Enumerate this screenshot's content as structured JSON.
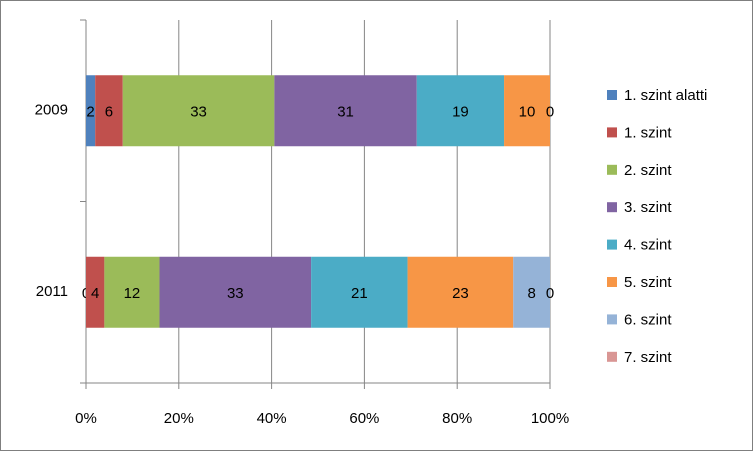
{
  "chart_data": {
    "type": "stacked-bar-100-horizontal",
    "categories": [
      "2009",
      "2011"
    ],
    "series": [
      {
        "name": "1. szint alatti",
        "color": "#4F81BD",
        "values": [
          2,
          0
        ]
      },
      {
        "name": "1. szint",
        "color": "#C0504D",
        "values": [
          6,
          4
        ]
      },
      {
        "name": "2. szint",
        "color": "#9BBB59",
        "values": [
          33,
          12
        ]
      },
      {
        "name": "3. szint",
        "color": "#8064A2",
        "values": [
          31,
          33
        ]
      },
      {
        "name": "4. szint",
        "color": "#4BACC6",
        "values": [
          19,
          21
        ]
      },
      {
        "name": "5. szint",
        "color": "#F79646",
        "values": [
          10,
          23
        ]
      },
      {
        "name": "6. szint",
        "color": "#95B3D7",
        "values": [
          0,
          8
        ]
      },
      {
        "name": "7. szint",
        "color": "#D99694",
        "values": [
          0,
          0
        ]
      }
    ],
    "xlim": [
      0,
      100
    ],
    "xticks": [
      {
        "value": 0,
        "label": "0%"
      },
      {
        "value": 20,
        "label": "20%"
      },
      {
        "value": 40,
        "label": "40%"
      },
      {
        "value": 60,
        "label": "60%"
      },
      {
        "value": 80,
        "label": "80%"
      },
      {
        "value": 100,
        "label": "100%"
      }
    ],
    "grid": true,
    "legend": "right"
  }
}
